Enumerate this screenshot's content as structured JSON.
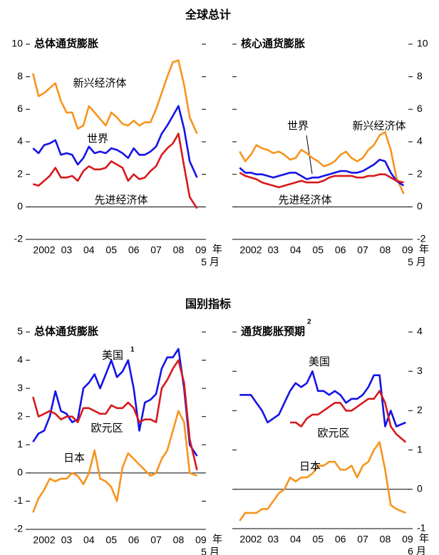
{
  "section_titles": [
    "全球总计",
    "国别指标"
  ],
  "chart_data": [
    {
      "type": "line",
      "title": "总体通货膨胀",
      "x_unit": "年",
      "x_last_label": "5 月",
      "x": [
        2002,
        2002.25,
        2002.5,
        2002.75,
        2003,
        2003.25,
        2003.5,
        2003.75,
        2004,
        2004.25,
        2004.5,
        2004.75,
        2005,
        2005.25,
        2005.5,
        2005.75,
        2006,
        2006.25,
        2006.5,
        2006.75,
        2007,
        2007.25,
        2007.5,
        2007.75,
        2008,
        2008.25,
        2008.5,
        2008.75,
        2009,
        2009.33
      ],
      "xlim": [
        2001.8,
        2009.6
      ],
      "xticks": [
        {
          "value": 2002.5,
          "label": "2002"
        },
        {
          "value": 2003.5,
          "label": "03"
        },
        {
          "value": 2004.5,
          "label": "04"
        },
        {
          "value": 2005.5,
          "label": "05"
        },
        {
          "value": 2006.5,
          "label": "06"
        },
        {
          "value": 2007.5,
          "label": "07"
        },
        {
          "value": 2008.5,
          "label": "08"
        },
        {
          "value": 2009.5,
          "label": "09"
        }
      ],
      "ylim": [
        -2,
        10
      ],
      "yticks": [
        -2,
        0,
        2,
        4,
        6,
        8,
        10
      ],
      "y_side": "left",
      "series": [
        {
          "name": "新兴经济体",
          "color": "#f7941d",
          "values": [
            8.2,
            6.8,
            7.0,
            7.3,
            7.6,
            6.5,
            5.8,
            5.8,
            4.8,
            5.0,
            6.2,
            5.8,
            5.4,
            5.0,
            5.8,
            5.5,
            5.1,
            5.0,
            5.3,
            5.0,
            5.2,
            5.2,
            6.0,
            7.0,
            8.0,
            8.9,
            9.0,
            7.5,
            5.5,
            4.5
          ]
        },
        {
          "name": "世界",
          "color": "#1414e6",
          "values": [
            3.6,
            3.3,
            3.8,
            3.9,
            4.1,
            3.2,
            3.3,
            3.2,
            2.6,
            3.0,
            3.7,
            3.3,
            3.4,
            3.3,
            3.6,
            3.5,
            3.3,
            3.0,
            3.6,
            3.2,
            3.2,
            3.4,
            3.7,
            4.5,
            5.0,
            5.6,
            6.2,
            4.8,
            2.8,
            1.8
          ]
        },
        {
          "name": "先进经济体",
          "color": "#d7191c",
          "values": [
            1.4,
            1.3,
            1.6,
            1.9,
            2.4,
            1.8,
            1.8,
            1.9,
            1.6,
            2.2,
            2.5,
            2.3,
            2.3,
            2.4,
            2.8,
            2.6,
            2.4,
            1.6,
            2.0,
            1.7,
            1.8,
            2.2,
            2.5,
            3.2,
            3.6,
            3.9,
            4.5,
            2.5,
            0.6,
            -0.1
          ]
        }
      ]
    },
    {
      "type": "line",
      "title": "核心通货膨胀",
      "x_unit": "年",
      "x_last_label": "5 月",
      "x": [
        2002,
        2002.25,
        2002.5,
        2002.75,
        2003,
        2003.25,
        2003.5,
        2003.75,
        2004,
        2004.25,
        2004.5,
        2004.75,
        2005,
        2005.25,
        2005.5,
        2005.75,
        2006,
        2006.25,
        2006.5,
        2006.75,
        2007,
        2007.25,
        2007.5,
        2007.75,
        2008,
        2008.25,
        2008.5,
        2008.75,
        2009,
        2009.33
      ],
      "xlim": [
        2001.8,
        2009.6
      ],
      "xticks": [
        {
          "value": 2002.5,
          "label": "2002"
        },
        {
          "value": 2003.5,
          "label": "03"
        },
        {
          "value": 2004.5,
          "label": "04"
        },
        {
          "value": 2005.5,
          "label": "05"
        },
        {
          "value": 2006.5,
          "label": "06"
        },
        {
          "value": 2007.5,
          "label": "07"
        },
        {
          "value": 2008.5,
          "label": "08"
        },
        {
          "value": 2009.5,
          "label": "09"
        }
      ],
      "ylim": [
        -2,
        10
      ],
      "yticks": [
        -2,
        0,
        2,
        4,
        6,
        8,
        10
      ],
      "y_side": "right",
      "series": [
        {
          "name": "新兴经济体",
          "color": "#f7941d",
          "values": [
            3.4,
            2.8,
            3.2,
            3.8,
            3.6,
            3.5,
            3.3,
            3.4,
            3.2,
            2.9,
            3.0,
            3.5,
            3.3,
            3.0,
            2.8,
            2.5,
            2.6,
            2.8,
            3.2,
            3.4,
            3.0,
            2.8,
            3.0,
            3.5,
            3.8,
            4.4,
            4.6,
            3.5,
            1.8,
            0.8
          ]
        },
        {
          "name": "世界",
          "color": "#1414e6",
          "values": [
            2.4,
            2.1,
            2.1,
            2.0,
            2.0,
            1.9,
            1.8,
            1.9,
            2.0,
            2.1,
            2.1,
            1.9,
            1.7,
            1.8,
            1.8,
            1.9,
            2.0,
            2.1,
            2.2,
            2.2,
            2.1,
            2.1,
            2.2,
            2.4,
            2.6,
            2.9,
            2.8,
            2.1,
            1.6,
            1.3
          ]
        },
        {
          "name": "先进经济体",
          "color": "#d7191c",
          "values": [
            2.1,
            1.9,
            1.8,
            1.7,
            1.5,
            1.4,
            1.3,
            1.2,
            1.3,
            1.4,
            1.5,
            1.6,
            1.5,
            1.5,
            1.5,
            1.6,
            1.8,
            1.9,
            1.9,
            1.9,
            1.9,
            1.8,
            1.8,
            1.9,
            1.9,
            2.0,
            2.0,
            1.8,
            1.6,
            1.5
          ]
        }
      ]
    },
    {
      "type": "line",
      "title": "总体通货膨胀",
      "x_unit": "年",
      "x_last_label": "5 月",
      "x": [
        2002,
        2002.25,
        2002.5,
        2002.75,
        2003,
        2003.25,
        2003.5,
        2003.75,
        2004,
        2004.25,
        2004.5,
        2004.75,
        2005,
        2005.25,
        2005.5,
        2005.75,
        2006,
        2006.25,
        2006.5,
        2006.75,
        2007,
        2007.25,
        2007.5,
        2007.75,
        2008,
        2008.25,
        2008.5,
        2008.75,
        2009,
        2009.33
      ],
      "xlim": [
        2001.8,
        2009.6
      ],
      "xticks": [
        {
          "value": 2002.5,
          "label": "2002"
        },
        {
          "value": 2003.5,
          "label": "03"
        },
        {
          "value": 2004.5,
          "label": "04"
        },
        {
          "value": 2005.5,
          "label": "05"
        },
        {
          "value": 2006.5,
          "label": "06"
        },
        {
          "value": 2007.5,
          "label": "07"
        },
        {
          "value": 2008.5,
          "label": "08"
        },
        {
          "value": 2009.5,
          "label": "09"
        }
      ],
      "ylim": [
        -2,
        5
      ],
      "yticks": [
        -2,
        -1,
        0,
        1,
        2,
        3,
        4,
        5
      ],
      "y_side": "left",
      "series": [
        {
          "name": "美国",
          "footnote": "1",
          "color": "#1414e6",
          "values": [
            1.1,
            1.4,
            1.5,
            2.0,
            2.9,
            2.2,
            2.1,
            1.8,
            1.9,
            3.0,
            3.2,
            3.5,
            3.0,
            3.5,
            4.0,
            3.4,
            3.6,
            4.0,
            3.0,
            1.5,
            2.5,
            2.6,
            2.8,
            3.7,
            4.1,
            4.1,
            4.4,
            3.0,
            1.0,
            0.6
          ]
        },
        {
          "name": "欧元区",
          "color": "#d7191c",
          "values": [
            2.7,
            2.0,
            2.1,
            2.2,
            2.1,
            1.9,
            2.0,
            2.0,
            1.8,
            2.3,
            2.3,
            2.2,
            2.1,
            2.1,
            2.4,
            2.3,
            2.3,
            2.5,
            2.3,
            1.8,
            1.9,
            1.9,
            1.8,
            3.0,
            3.3,
            3.7,
            4.0,
            3.2,
            1.2,
            0.1
          ]
        },
        {
          "name": "日本",
          "color": "#f7941d",
          "values": [
            -1.4,
            -0.9,
            -0.6,
            -0.2,
            -0.3,
            -0.2,
            -0.2,
            0.0,
            -0.1,
            -0.4,
            0.0,
            0.8,
            -0.2,
            -0.3,
            -0.5,
            -1.0,
            0.2,
            0.7,
            0.5,
            0.3,
            0.1,
            -0.1,
            0.0,
            0.5,
            0.8,
            1.5,
            2.2,
            1.8,
            0.0,
            -0.1
          ]
        }
      ]
    },
    {
      "type": "line",
      "title": "通货膨胀预期",
      "title_footnote": "2",
      "x_unit": "年",
      "x_last_label": "6 月",
      "x": [
        2002,
        2002.25,
        2002.5,
        2002.75,
        2003,
        2003.25,
        2003.5,
        2003.75,
        2004,
        2004.25,
        2004.5,
        2004.75,
        2005,
        2005.25,
        2005.5,
        2005.75,
        2006,
        2006.25,
        2006.5,
        2006.75,
        2007,
        2007.25,
        2007.5,
        2007.75,
        2008,
        2008.25,
        2008.5,
        2008.75,
        2009,
        2009.42
      ],
      "xlim": [
        2001.8,
        2009.6
      ],
      "xticks": [
        {
          "value": 2002.5,
          "label": "2002"
        },
        {
          "value": 2003.5,
          "label": "03"
        },
        {
          "value": 2004.5,
          "label": "04"
        },
        {
          "value": 2005.5,
          "label": "05"
        },
        {
          "value": 2006.5,
          "label": "06"
        },
        {
          "value": 2007.5,
          "label": "07"
        },
        {
          "value": 2008.5,
          "label": "08"
        },
        {
          "value": 2009.5,
          "label": "09"
        }
      ],
      "ylim": [
        -1,
        4
      ],
      "yticks": [
        -1,
        0,
        1,
        2,
        3,
        4
      ],
      "y_side": "right",
      "series": [
        {
          "name": "美国",
          "color": "#1414e6",
          "values": [
            2.4,
            2.4,
            2.4,
            2.2,
            2.0,
            1.7,
            1.8,
            1.9,
            2.2,
            2.5,
            2.7,
            2.6,
            2.7,
            3.0,
            2.5,
            2.5,
            2.4,
            2.5,
            2.4,
            2.2,
            2.3,
            2.3,
            2.4,
            2.6,
            2.9,
            2.9,
            1.6,
            2.0,
            1.6,
            1.7
          ]
        },
        {
          "name": "欧元区",
          "color": "#d7191c",
          "values": [
            null,
            null,
            null,
            null,
            null,
            null,
            null,
            null,
            null,
            1.7,
            1.7,
            1.6,
            1.8,
            1.9,
            1.9,
            2.0,
            2.1,
            2.2,
            2.2,
            2.0,
            2.0,
            2.1,
            2.2,
            2.3,
            2.3,
            2.5,
            2.2,
            1.6,
            1.4,
            1.2
          ]
        },
        {
          "name": "日本",
          "color": "#f7941d",
          "values": [
            -0.8,
            -0.6,
            -0.6,
            -0.6,
            -0.5,
            -0.5,
            -0.3,
            -0.1,
            0.0,
            0.3,
            0.2,
            0.3,
            0.3,
            0.4,
            0.6,
            0.6,
            0.7,
            0.7,
            0.5,
            0.5,
            0.6,
            0.3,
            0.6,
            0.7,
            1.0,
            1.2,
            0.5,
            -0.4,
            -0.5,
            -0.6
          ]
        }
      ]
    }
  ]
}
